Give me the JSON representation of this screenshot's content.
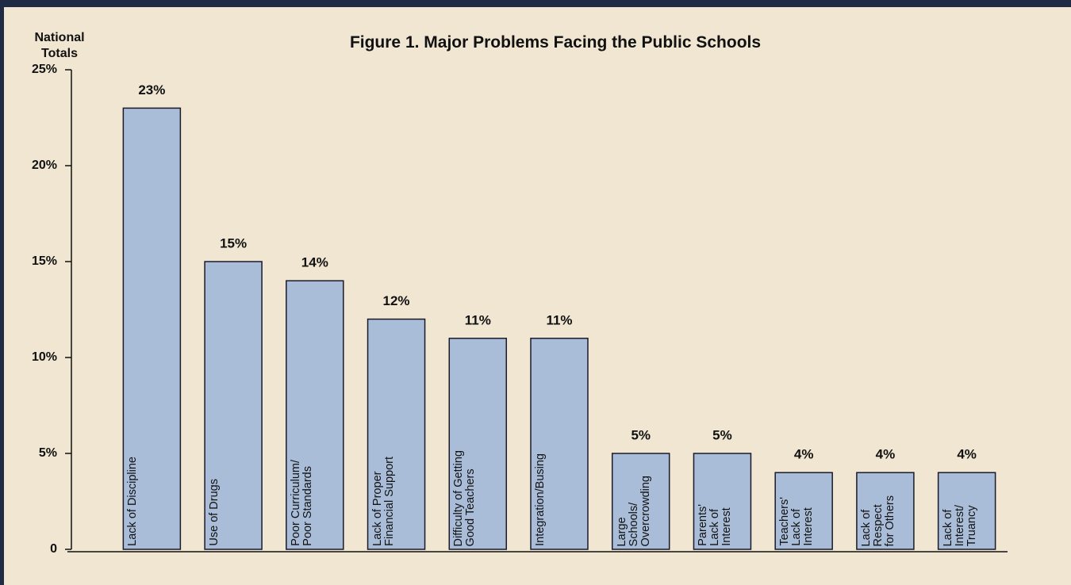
{
  "chart_data": {
    "type": "bar",
    "title": "Figure 1. Major Problems Facing the Public Schools",
    "y_label": "National\nTotals",
    "categories": [
      "Lack of Discipline",
      "Use of Drugs",
      "Poor Curriculum/\nPoor Standards",
      "Lack of Proper\nFinancial Support",
      "Difficulty of Getting\nGood Teachers",
      "Integration/Busing",
      "Large\nSchools/\nOvercrowding",
      "Parents'\nLack of\nInterest",
      "Teachers'\nLack of\nInterest",
      "Lack of\nRespect\nfor Others",
      "Lack of\nInterest/\nTruancy"
    ],
    "values": [
      23,
      15,
      14,
      12,
      11,
      11,
      5,
      5,
      4,
      4,
      4
    ],
    "value_labels": [
      "23%",
      "15%",
      "14%",
      "12%",
      "11%",
      "11%",
      "5%",
      "5%",
      "4%",
      "4%",
      "4%"
    ],
    "color": "#a9bcd8",
    "ylim": [
      0,
      25
    ],
    "yticks": [
      0,
      {
        "value": 5,
        "label": "5%"
      },
      {
        "value": 10,
        "label": "10%"
      },
      {
        "value": 15,
        "label": "15%"
      },
      {
        "value": 20,
        "label": "20%"
      },
      {
        "value": 25,
        "label": "25%"
      }
    ],
    "grid": false
  }
}
